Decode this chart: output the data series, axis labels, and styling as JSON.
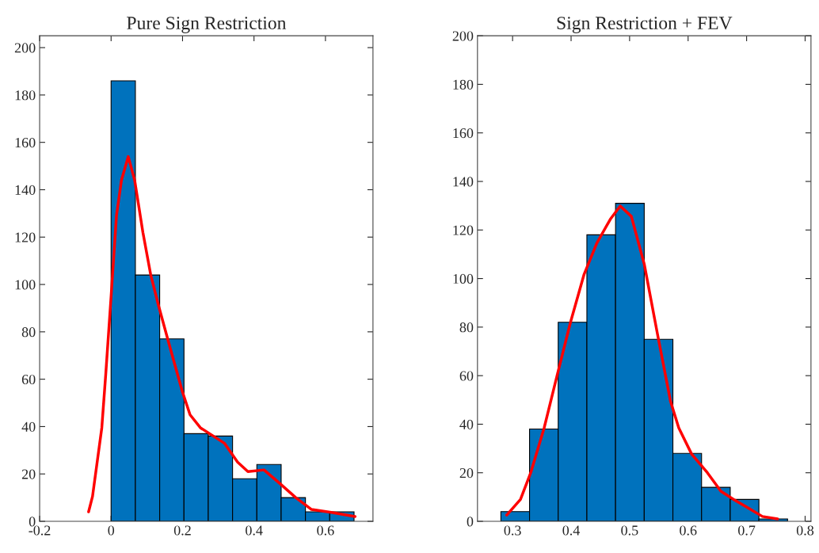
{
  "chart_data": [
    {
      "type": "histogram",
      "title": "Pure Sign Restriction",
      "bins": [
        0,
        0.068,
        0.136,
        0.204,
        0.272,
        0.34,
        0.408,
        0.476,
        0.544,
        0.612,
        0.68
      ],
      "values": [
        186,
        104,
        77,
        37,
        36,
        18,
        24,
        10,
        4,
        4
      ],
      "color": "#0072bd",
      "series": [
        {
          "type": "line",
          "color": "#ff0000",
          "x": [
            -0.063,
            -0.052,
            -0.026,
            -0.015,
            0,
            0.015,
            0.029,
            0.048,
            0.066,
            0.089,
            0.111,
            0.133,
            0.162,
            0.199,
            0.221,
            0.25,
            0.317,
            0.354,
            0.383,
            0.428,
            0.472,
            0.517,
            0.561,
            0.62,
            0.683
          ],
          "values": [
            4,
            10.5,
            39.5,
            62,
            95,
            129,
            144,
            154,
            144,
            122,
            104,
            91,
            75,
            55,
            45,
            39.5,
            33,
            25,
            21,
            21.7,
            16,
            10,
            5,
            3.7,
            2
          ]
        }
      ],
      "xlim": [
        -0.2,
        0.733
      ],
      "ylim": [
        0,
        205
      ],
      "xticks": [
        {
          "value": -0.2,
          "label": "-0.2"
        },
        0,
        0.2,
        0.4,
        0.6
      ],
      "yticks": [
        0,
        20,
        40,
        60,
        80,
        100,
        120,
        140,
        160,
        180,
        200
      ]
    },
    {
      "type": "histogram",
      "title": "Sign Restriction + FEV",
      "bins": [
        0.28,
        0.329,
        0.378,
        0.427,
        0.476,
        0.525,
        0.574,
        0.623,
        0.672,
        0.721,
        0.77
      ],
      "values": [
        4,
        38,
        82,
        118,
        131,
        75,
        28,
        14,
        9,
        1
      ],
      "color": "#0072bd",
      "series": [
        {
          "type": "line",
          "color": "#ff0000",
          "x": [
            0.29,
            0.3135,
            0.331,
            0.354,
            0.376,
            0.399,
            0.422,
            0.444,
            0.467,
            0.484,
            0.503,
            0.525,
            0.548,
            0.57,
            0.584,
            0.606,
            0.633,
            0.656,
            0.678,
            0.7,
            0.727,
            0.753
          ],
          "values": [
            2.6,
            9,
            20,
            38.5,
            60,
            82,
            101.6,
            114.6,
            124.4,
            129.9,
            125.6,
            106,
            76.7,
            49.4,
            38.5,
            27.7,
            20,
            12.4,
            9,
            5.9,
            2,
            1
          ]
        }
      ],
      "xlim": [
        0.24,
        0.81
      ],
      "ylim": [
        0,
        200
      ],
      "xticks": [
        0.3,
        0.4,
        0.5,
        0.6,
        0.7,
        0.8
      ],
      "yticks": [
        0,
        20,
        40,
        60,
        80,
        100,
        120,
        140,
        160,
        180,
        200
      ]
    }
  ]
}
